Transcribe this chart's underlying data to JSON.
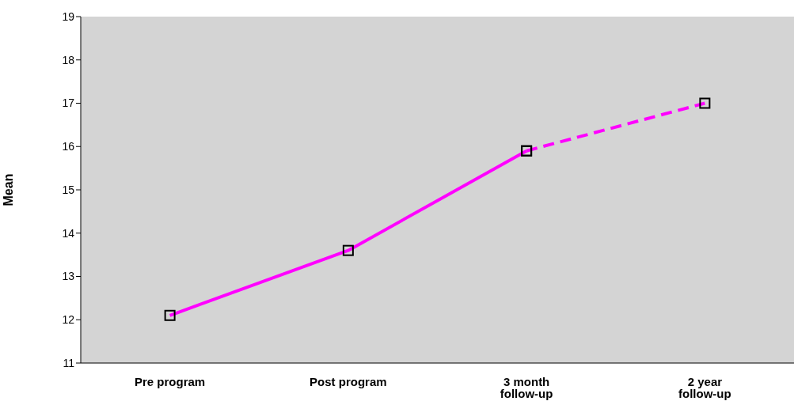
{
  "chart_data": {
    "type": "line",
    "ylabel": "Mean",
    "categories": [
      "Pre program",
      "Post program",
      "3 month follow-up",
      "2 year follow-up"
    ],
    "series": [
      {
        "color": "#ff00ff",
        "values": [
          12.1,
          13.6,
          15.9,
          null
        ],
        "line_style": "solid"
      },
      {
        "color": "#ff00ff",
        "values": [
          null,
          null,
          15.9,
          17.0
        ],
        "line_style": "dashed"
      }
    ],
    "ylim": [
      11,
      19
    ],
    "yticks": [
      11,
      12,
      13,
      14,
      15,
      16,
      17,
      18,
      19
    ],
    "grid": false,
    "legend": false,
    "marker": "square"
  }
}
